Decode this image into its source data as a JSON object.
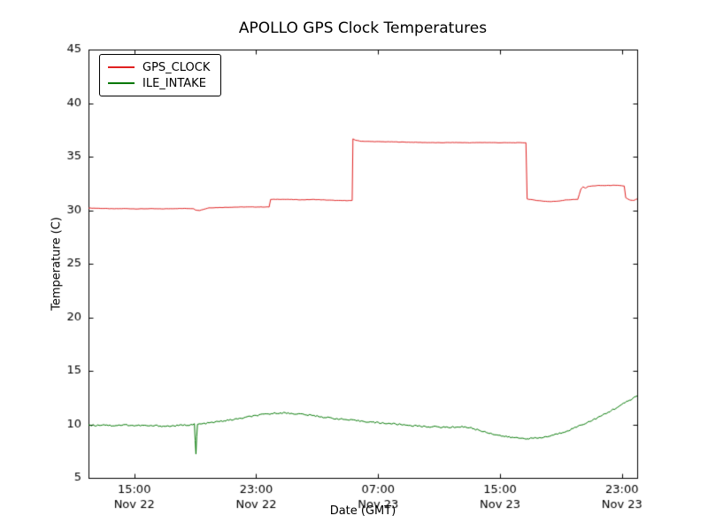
{
  "figure": {
    "title": "APOLLO GPS Clock Temperatures",
    "xlabel": "Date (GMT)",
    "ylabel": "Temperature (C)"
  },
  "chart_data": {
    "type": "line",
    "title": "APOLLO GPS Clock Temperatures",
    "xlabel": "Date (GMT)",
    "ylabel": "Temperature (C)",
    "grid": false,
    "legend_position": "upper left",
    "x_unit": "hours since Nov 22 12:00 GMT",
    "xlim": [
      0,
      36
    ],
    "ylim": [
      5,
      45
    ],
    "yticks": [
      5,
      10,
      15,
      20,
      25,
      30,
      35,
      40,
      45
    ],
    "xticks": [
      {
        "x": 3,
        "time": "15:00",
        "date": "Nov 22"
      },
      {
        "x": 11,
        "time": "23:00",
        "date": "Nov 22"
      },
      {
        "x": 19,
        "time": "07:00",
        "date": "Nov 23"
      },
      {
        "x": 27,
        "time": "15:00",
        "date": "Nov 23"
      },
      {
        "x": 35,
        "time": "23:00",
        "date": "Nov 23"
      }
    ],
    "series": [
      {
        "name": "GPS_CLOCK",
        "color": "#e02020",
        "noise": 0.015,
        "points": [
          [
            0,
            30.2
          ],
          [
            0.8,
            30.17
          ],
          [
            1.6,
            30.13
          ],
          [
            2.4,
            30.15
          ],
          [
            3.2,
            30.12
          ],
          [
            4,
            30.14
          ],
          [
            4.8,
            30.12
          ],
          [
            5.6,
            30.15
          ],
          [
            6.4,
            30.16
          ],
          [
            6.9,
            30.15
          ],
          [
            7.0,
            30.02
          ],
          [
            7.3,
            29.98
          ],
          [
            7.6,
            30.1
          ],
          [
            7.9,
            30.22
          ],
          [
            8.6,
            30.25
          ],
          [
            9.4,
            30.28
          ],
          [
            10.2,
            30.3
          ],
          [
            11.0,
            30.3
          ],
          [
            11.85,
            30.3
          ],
          [
            11.95,
            31.0
          ],
          [
            12.5,
            31.02
          ],
          [
            13.2,
            31.0
          ],
          [
            14,
            30.97
          ],
          [
            14.8,
            31.0
          ],
          [
            15.6,
            30.95
          ],
          [
            16.4,
            30.9
          ],
          [
            17.0,
            30.9
          ],
          [
            17.3,
            30.9
          ],
          [
            17.35,
            36.65
          ],
          [
            17.5,
            36.55
          ],
          [
            17.8,
            36.45
          ],
          [
            18.3,
            36.42
          ],
          [
            19,
            36.4
          ],
          [
            20,
            36.38
          ],
          [
            21,
            36.35
          ],
          [
            22,
            36.32
          ],
          [
            23,
            36.3
          ],
          [
            24,
            36.32
          ],
          [
            25,
            36.3
          ],
          [
            26,
            36.32
          ],
          [
            27,
            36.3
          ],
          [
            28,
            36.3
          ],
          [
            28.7,
            36.3
          ],
          [
            28.78,
            31.05
          ],
          [
            29.2,
            30.95
          ],
          [
            29.8,
            30.85
          ],
          [
            30.3,
            30.8
          ],
          [
            30.8,
            30.85
          ],
          [
            31.3,
            30.95
          ],
          [
            31.8,
            31.0
          ],
          [
            32.1,
            31.0
          ],
          [
            32.3,
            31.95
          ],
          [
            32.45,
            32.2
          ],
          [
            32.6,
            32.05
          ],
          [
            32.75,
            32.2
          ],
          [
            33.0,
            32.25
          ],
          [
            33.4,
            32.3
          ],
          [
            33.9,
            32.3
          ],
          [
            34.4,
            32.32
          ],
          [
            34.9,
            32.3
          ],
          [
            35.15,
            32.25
          ],
          [
            35.25,
            31.15
          ],
          [
            35.5,
            30.95
          ],
          [
            35.75,
            30.9
          ],
          [
            36,
            31.05
          ]
        ]
      },
      {
        "name": "ILE_INTAKE",
        "color": "#007700",
        "noise": 0.07,
        "points": [
          [
            0,
            9.95
          ],
          [
            0.5,
            9.9
          ],
          [
            1,
            9.98
          ],
          [
            1.5,
            9.88
          ],
          [
            2,
            9.92
          ],
          [
            2.5,
            9.95
          ],
          [
            3,
            9.88
          ],
          [
            3.5,
            9.9
          ],
          [
            4,
            9.85
          ],
          [
            4.5,
            9.88
          ],
          [
            5,
            9.82
          ],
          [
            5.5,
            9.85
          ],
          [
            6,
            9.9
          ],
          [
            6.5,
            9.95
          ],
          [
            6.95,
            10.0
          ],
          [
            7.0,
            8.5
          ],
          [
            7.05,
            7.2
          ],
          [
            7.1,
            8.8
          ],
          [
            7.15,
            10.0
          ],
          [
            7.5,
            10.05
          ],
          [
            8,
            10.15
          ],
          [
            8.5,
            10.25
          ],
          [
            9,
            10.35
          ],
          [
            9.5,
            10.45
          ],
          [
            10,
            10.55
          ],
          [
            10.5,
            10.7
          ],
          [
            11,
            10.82
          ],
          [
            11.5,
            10.92
          ],
          [
            12,
            11.0
          ],
          [
            12.5,
            11.08
          ],
          [
            13,
            11.05
          ],
          [
            13.5,
            11.0
          ],
          [
            14,
            10.95
          ],
          [
            14.5,
            10.85
          ],
          [
            15,
            10.78
          ],
          [
            15.5,
            10.65
          ],
          [
            16,
            10.58
          ],
          [
            16.5,
            10.5
          ],
          [
            17,
            10.42
          ],
          [
            17.5,
            10.35
          ],
          [
            18,
            10.3
          ],
          [
            18.5,
            10.22
          ],
          [
            19,
            10.15
          ],
          [
            19.5,
            10.1
          ],
          [
            20,
            10.05
          ],
          [
            20.5,
            9.98
          ],
          [
            21,
            9.92
          ],
          [
            21.5,
            9.85
          ],
          [
            22,
            9.8
          ],
          [
            22.5,
            9.78
          ],
          [
            23,
            9.75
          ],
          [
            23.5,
            9.72
          ],
          [
            24,
            9.75
          ],
          [
            24.5,
            9.78
          ],
          [
            25,
            9.7
          ],
          [
            25.5,
            9.5
          ],
          [
            26,
            9.3
          ],
          [
            26.5,
            9.12
          ],
          [
            27,
            8.95
          ],
          [
            27.5,
            8.82
          ],
          [
            28,
            8.75
          ],
          [
            28.5,
            8.7
          ],
          [
            29,
            8.68
          ],
          [
            29.5,
            8.72
          ],
          [
            30,
            8.82
          ],
          [
            30.5,
            9.0
          ],
          [
            31,
            9.2
          ],
          [
            31.5,
            9.45
          ],
          [
            32,
            9.75
          ],
          [
            32.5,
            10.05
          ],
          [
            33,
            10.35
          ],
          [
            33.5,
            10.68
          ],
          [
            34,
            11.05
          ],
          [
            34.5,
            11.45
          ],
          [
            35,
            11.85
          ],
          [
            35.5,
            12.25
          ],
          [
            36,
            12.65
          ]
        ]
      }
    ]
  }
}
